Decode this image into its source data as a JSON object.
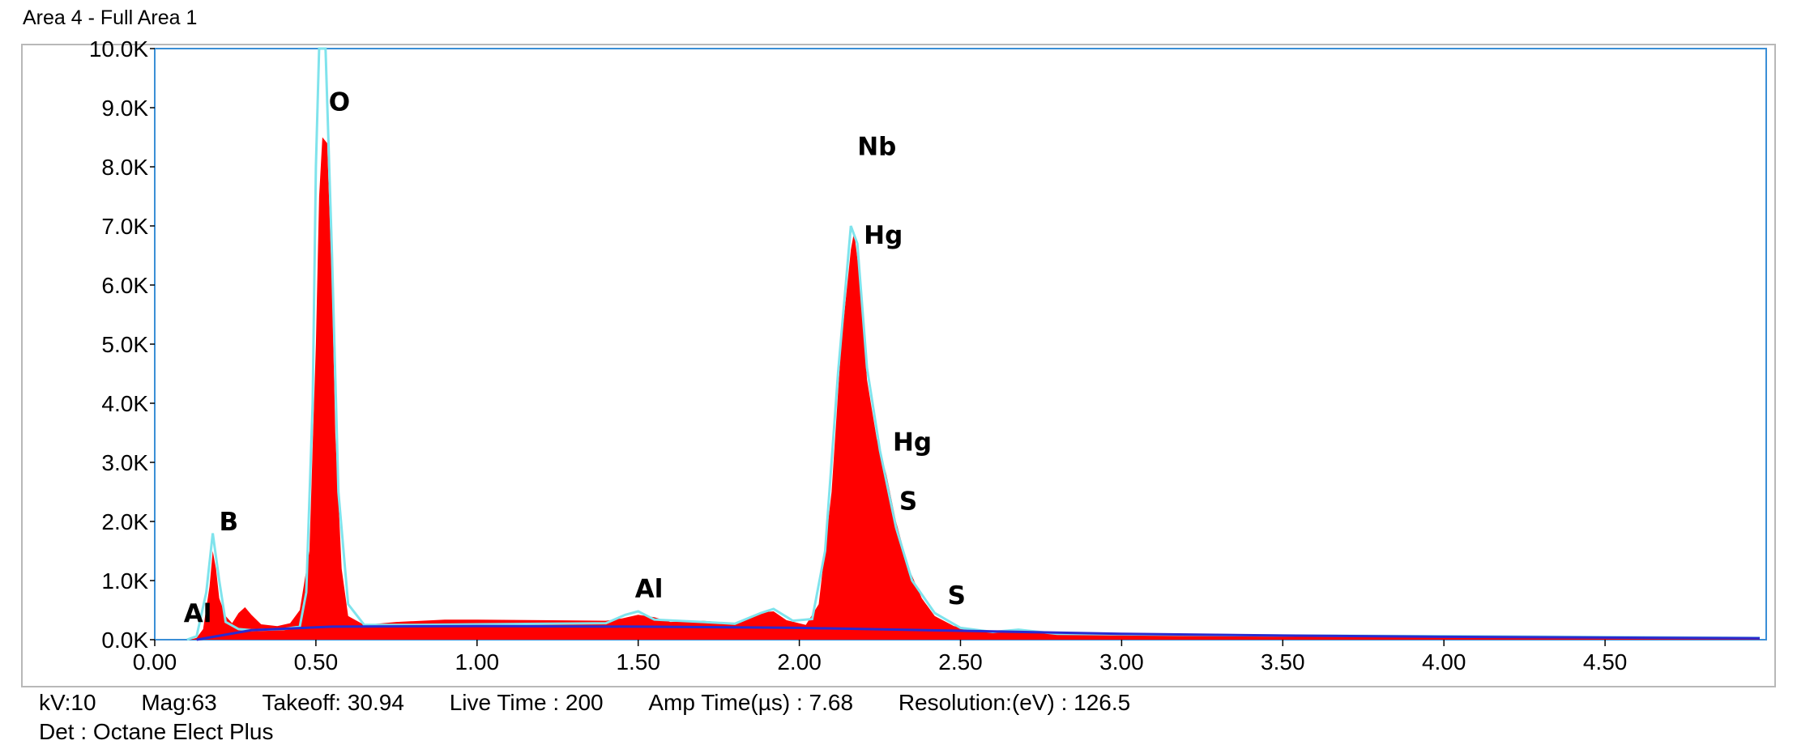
{
  "title": "Area 4 - Full Area 1",
  "chart_data": {
    "type": "area",
    "xlim": [
      0,
      5.0
    ],
    "ylim": [
      0,
      10000
    ],
    "x_ticks": [
      "0.00",
      "0.50",
      "1.00",
      "1.50",
      "2.00",
      "2.50",
      "3.00",
      "3.50",
      "4.00",
      "4.50"
    ],
    "y_ticks": [
      "0.0K",
      "1.0K",
      "2.0K",
      "3.0K",
      "4.0K",
      "5.0K",
      "6.0K",
      "7.0K",
      "8.0K",
      "9.0K",
      "10.0K"
    ],
    "colors": {
      "spectrum": "#ff0000",
      "fit": "#7fe3ec",
      "background": "#2a2ad0",
      "frame": "#3b8fd6"
    },
    "spectrum": [
      [
        0.11,
        0
      ],
      [
        0.13,
        30
      ],
      [
        0.15,
        180
      ],
      [
        0.17,
        900
      ],
      [
        0.18,
        1500
      ],
      [
        0.19,
        1200
      ],
      [
        0.2,
        700
      ],
      [
        0.22,
        400
      ],
      [
        0.24,
        280
      ],
      [
        0.26,
        450
      ],
      [
        0.28,
        550
      ],
      [
        0.3,
        420
      ],
      [
        0.33,
        260
      ],
      [
        0.38,
        230
      ],
      [
        0.42,
        280
      ],
      [
        0.45,
        500
      ],
      [
        0.48,
        1500
      ],
      [
        0.5,
        5000
      ],
      [
        0.51,
        7500
      ],
      [
        0.52,
        8500
      ],
      [
        0.535,
        8400
      ],
      [
        0.55,
        6000
      ],
      [
        0.56,
        3500
      ],
      [
        0.58,
        1200
      ],
      [
        0.6,
        400
      ],
      [
        0.65,
        250
      ],
      [
        0.75,
        300
      ],
      [
        0.9,
        340
      ],
      [
        1.0,
        340
      ],
      [
        1.2,
        330
      ],
      [
        1.4,
        320
      ],
      [
        1.45,
        360
      ],
      [
        1.5,
        420
      ],
      [
        1.55,
        380
      ],
      [
        1.6,
        300
      ],
      [
        1.7,
        320
      ],
      [
        1.8,
        280
      ],
      [
        1.88,
        460
      ],
      [
        1.92,
        480
      ],
      [
        1.96,
        330
      ],
      [
        2.02,
        250
      ],
      [
        2.06,
        600
      ],
      [
        2.1,
        2500
      ],
      [
        2.13,
        5000
      ],
      [
        2.16,
        6600
      ],
      [
        2.17,
        6900
      ],
      [
        2.19,
        6000
      ],
      [
        2.21,
        4400
      ],
      [
        2.24,
        3400
      ],
      [
        2.27,
        2800
      ],
      [
        2.3,
        2000
      ],
      [
        2.34,
        1200
      ],
      [
        2.38,
        700
      ],
      [
        2.42,
        400
      ],
      [
        2.48,
        230
      ],
      [
        2.55,
        150
      ],
      [
        2.65,
        140
      ],
      [
        2.75,
        120
      ],
      [
        3.0,
        100
      ],
      [
        3.5,
        80
      ],
      [
        4.0,
        60
      ],
      [
        4.5,
        40
      ],
      [
        4.98,
        30
      ]
    ],
    "fit": [
      [
        0.1,
        0
      ],
      [
        0.13,
        60
      ],
      [
        0.16,
        800
      ],
      [
        0.18,
        1800
      ],
      [
        0.2,
        1000
      ],
      [
        0.22,
        300
      ],
      [
        0.26,
        180
      ],
      [
        0.3,
        160
      ],
      [
        0.4,
        180
      ],
      [
        0.45,
        220
      ],
      [
        0.47,
        800
      ],
      [
        0.49,
        4000
      ],
      [
        0.5,
        8000
      ],
      [
        0.51,
        10000
      ],
      [
        0.53,
        10000
      ],
      [
        0.55,
        6500
      ],
      [
        0.57,
        2500
      ],
      [
        0.6,
        600
      ],
      [
        0.65,
        250
      ],
      [
        0.8,
        250
      ],
      [
        1.0,
        260
      ],
      [
        1.4,
        280
      ],
      [
        1.46,
        420
      ],
      [
        1.5,
        480
      ],
      [
        1.55,
        340
      ],
      [
        1.7,
        300
      ],
      [
        1.8,
        270
      ],
      [
        1.88,
        450
      ],
      [
        1.92,
        520
      ],
      [
        1.98,
        320
      ],
      [
        2.04,
        350
      ],
      [
        2.08,
        1500
      ],
      [
        2.12,
        4500
      ],
      [
        2.16,
        7000
      ],
      [
        2.18,
        6700
      ],
      [
        2.21,
        4600
      ],
      [
        2.25,
        3200
      ],
      [
        2.3,
        1900
      ],
      [
        2.35,
        1000
      ],
      [
        2.42,
        450
      ],
      [
        2.5,
        200
      ],
      [
        2.6,
        130
      ],
      [
        2.68,
        170
      ],
      [
        2.8,
        100
      ],
      [
        3.0,
        90
      ],
      [
        3.5,
        70
      ],
      [
        4.0,
        60
      ],
      [
        4.5,
        45
      ],
      [
        4.98,
        30
      ]
    ],
    "background": [
      [
        0.13,
        0
      ],
      [
        0.3,
        160
      ],
      [
        0.55,
        220
      ],
      [
        1.0,
        230
      ],
      [
        1.5,
        220
      ],
      [
        2.0,
        200
      ],
      [
        2.5,
        150
      ],
      [
        3.0,
        100
      ],
      [
        3.5,
        70
      ],
      [
        4.0,
        50
      ],
      [
        4.5,
        35
      ],
      [
        4.98,
        25
      ]
    ],
    "peak_labels": [
      {
        "text": "Al",
        "x": 0.09,
        "y": 300
      },
      {
        "text": "B",
        "x": 0.2,
        "y": 1850
      },
      {
        "text": "O",
        "x": 0.54,
        "y": 8950
      },
      {
        "text": "Nb",
        "x": 2.18,
        "y": 8200
      },
      {
        "text": "Hg",
        "x": 2.2,
        "y": 6700
      },
      {
        "text": "Al",
        "x": 1.49,
        "y": 720
      },
      {
        "text": "Hg",
        "x": 2.29,
        "y": 3200
      },
      {
        "text": "S",
        "x": 2.31,
        "y": 2200
      },
      {
        "text": "S",
        "x": 2.46,
        "y": 600
      }
    ]
  },
  "footer": {
    "kv": "kV:10",
    "mag": "Mag:63",
    "takeoff": "Takeoff: 30.94",
    "live_time": "Live Time : 200",
    "amp_time": "Amp Time(µs) : 7.68",
    "resolution": "Resolution:(eV) : 126.5",
    "detector": "Det : Octane Elect Plus"
  }
}
